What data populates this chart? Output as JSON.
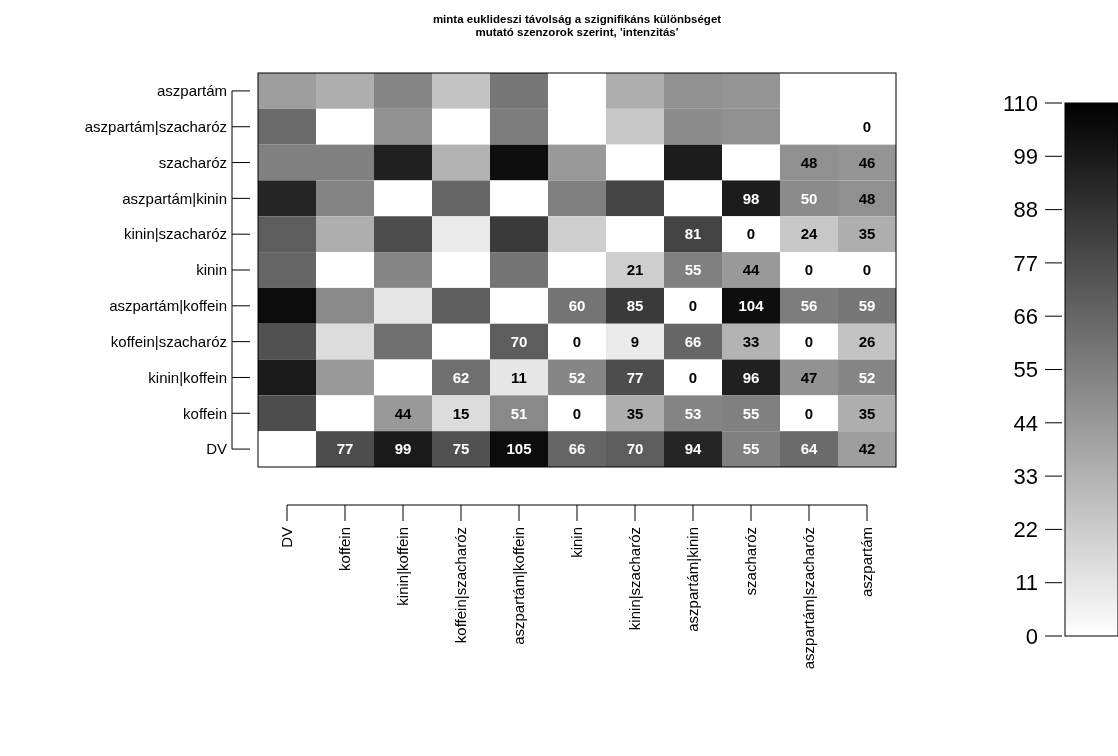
{
  "chart_data": {
    "type": "heatmap",
    "title": "minta euklideszi távolság a szignifikáns különbséget\nmutató szenzorok szerint, 'intenzitás'",
    "categories": [
      "DV",
      "koffein",
      "kinin|koffein",
      "koffein|szacharóz",
      "aszpartám|koffein",
      "kinin",
      "kinin|szacharóz",
      "aszpartám|kinin",
      "szacharóz",
      "aszpartám|szacharóz",
      "aszpartám"
    ],
    "y_categories": [
      "aszpartám",
      "aszpartám|szacharóz",
      "szacharóz",
      "aszpartám|kinin",
      "kinin|szacharóz",
      "kinin",
      "aszpartám|koffein",
      "koffein|szacharóz",
      "kinin|koffein",
      "koffein",
      "DV"
    ],
    "cells": [
      [
        42,
        35,
        52,
        26,
        59,
        0,
        35,
        48,
        46,
        0,
        null
      ],
      [
        64,
        0,
        47,
        0,
        56,
        0,
        24,
        50,
        48,
        null,
        0
      ],
      [
        55,
        55,
        96,
        33,
        104,
        44,
        0,
        98,
        null,
        48,
        46
      ],
      [
        94,
        53,
        0,
        66,
        0,
        55,
        81,
        null,
        98,
        50,
        48
      ],
      [
        70,
        35,
        77,
        9,
        85,
        21,
        null,
        81,
        0,
        24,
        35
      ],
      [
        66,
        0,
        52,
        0,
        60,
        null,
        21,
        55,
        44,
        0,
        0
      ],
      [
        105,
        51,
        11,
        70,
        null,
        60,
        85,
        0,
        104,
        56,
        59
      ],
      [
        75,
        15,
        62,
        null,
        70,
        0,
        9,
        66,
        33,
        0,
        26
      ],
      [
        99,
        44,
        null,
        62,
        11,
        52,
        77,
        0,
        96,
        47,
        52
      ],
      [
        77,
        null,
        44,
        15,
        51,
        0,
        35,
        53,
        55,
        0,
        35
      ],
      [
        null,
        77,
        99,
        75,
        105,
        66,
        70,
        94,
        55,
        64,
        42
      ]
    ],
    "cell_labels": [
      [
        null,
        null,
        null,
        null,
        null,
        null,
        null,
        null,
        null,
        null,
        null
      ],
      [
        null,
        null,
        null,
        null,
        null,
        null,
        null,
        null,
        null,
        null,
        "0"
      ],
      [
        null,
        null,
        null,
        null,
        null,
        null,
        null,
        null,
        null,
        "48",
        "46"
      ],
      [
        null,
        null,
        null,
        null,
        null,
        null,
        null,
        null,
        "98",
        "50",
        "48"
      ],
      [
        null,
        null,
        null,
        null,
        null,
        null,
        null,
        "81",
        "0",
        "24",
        "35"
      ],
      [
        null,
        null,
        null,
        null,
        null,
        null,
        "21",
        "55",
        "44",
        "0",
        "0"
      ],
      [
        null,
        null,
        null,
        null,
        null,
        "60",
        "85",
        "0",
        "104",
        "56",
        "59"
      ],
      [
        null,
        null,
        null,
        null,
        "70",
        "0",
        "9",
        "66",
        "33",
        "0",
        "26"
      ],
      [
        null,
        null,
        null,
        "62",
        "11",
        "52",
        "77",
        "0",
        "96",
        "47",
        "52"
      ],
      [
        null,
        null,
        "44",
        "15",
        "51",
        "0",
        "35",
        "53",
        "55",
        "0",
        "35"
      ],
      [
        null,
        "77",
        "99",
        "75",
        "105",
        "66",
        "70",
        "94",
        "55",
        "64",
        "42"
      ]
    ],
    "clim": [
      0,
      110
    ],
    "cticks": [
      0,
      11,
      22,
      33,
      44,
      55,
      66,
      77,
      88,
      99,
      110
    ]
  }
}
